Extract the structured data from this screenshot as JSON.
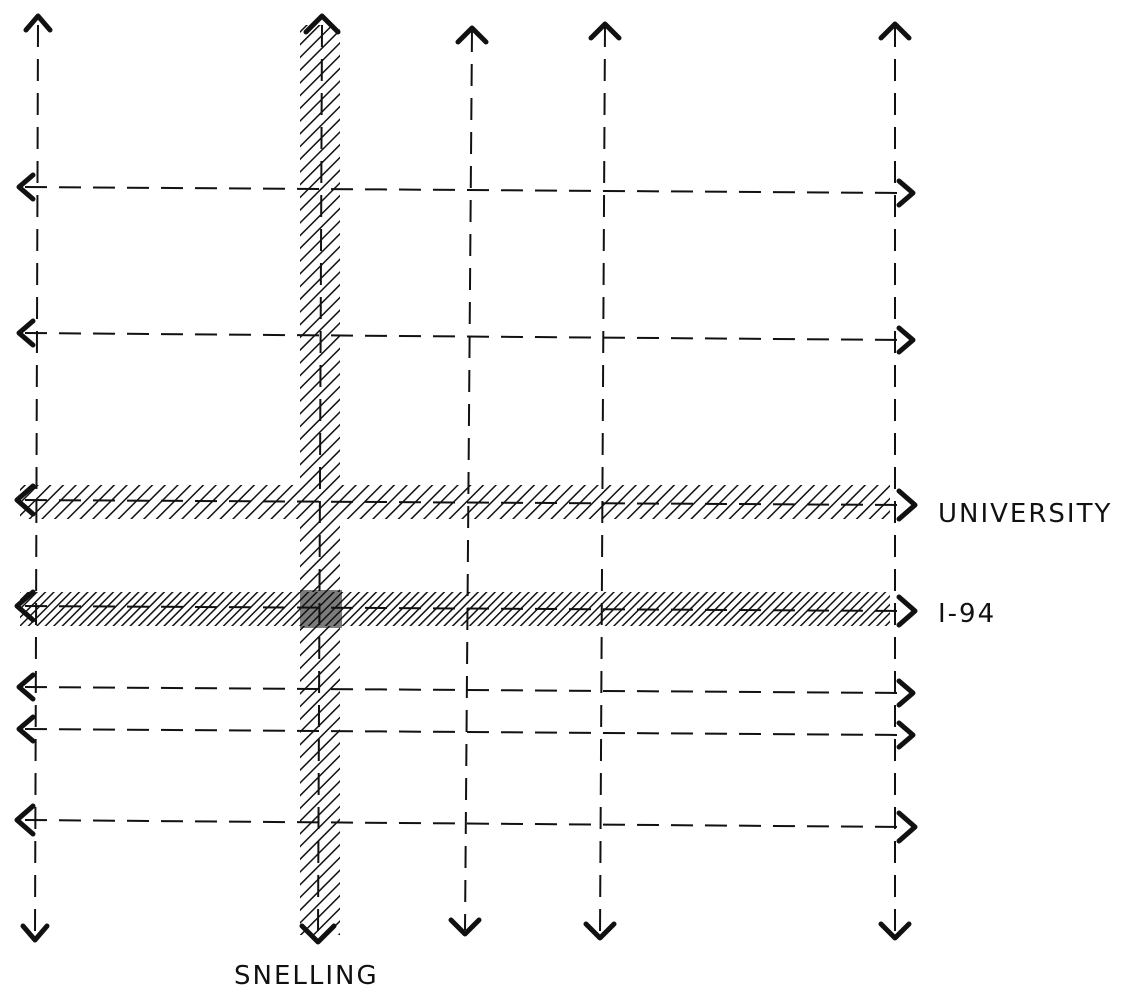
{
  "diagram": {
    "ink_color": "#111111",
    "labels": {
      "university": "UNIVERSITY",
      "i94": "I-94",
      "snelling": "SNELLING"
    },
    "streets": {
      "vertical": [
        {
          "id": "v1",
          "major": false
        },
        {
          "id": "snelling",
          "major": true,
          "label_key": "snelling"
        },
        {
          "id": "v3",
          "major": false
        },
        {
          "id": "v4",
          "major": false
        },
        {
          "id": "v5",
          "major": false
        }
      ],
      "horizontal": [
        {
          "id": "h1",
          "major": false
        },
        {
          "id": "h2",
          "major": false
        },
        {
          "id": "university",
          "major": true,
          "label_key": "university"
        },
        {
          "id": "i94",
          "major": true,
          "label_key": "i94"
        },
        {
          "id": "h5",
          "major": false
        },
        {
          "id": "h6",
          "major": false
        },
        {
          "id": "h7",
          "major": false
        }
      ]
    }
  }
}
